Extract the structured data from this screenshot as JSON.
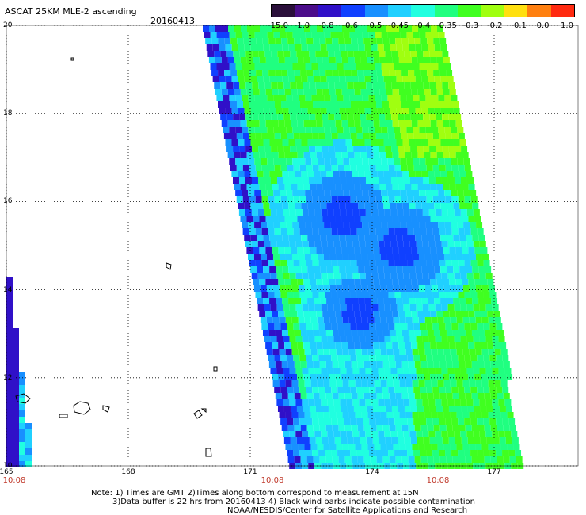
{
  "header": {
    "title": "ASCAT 25KM MLE-2 ascending",
    "date": "20160413"
  },
  "colorbar": {
    "labels": [
      "-15.0",
      "-1.0",
      "-0.8",
      "-0.6",
      "-0.5",
      "-0.45",
      "-0.4",
      "-0.35",
      "-0.3",
      "-0.2",
      "-0.1",
      "0.0",
      "1.0"
    ],
    "colors": [
      "#2a0f3a",
      "#4b0d8a",
      "#3010c8",
      "#1040ff",
      "#1890ff",
      "#20d0ff",
      "#20ffe0",
      "#20ff80",
      "#40ff20",
      "#a0ff10",
      "#ffe010",
      "#ff8010",
      "#ff2a10"
    ]
  },
  "axes": {
    "lat_ticks": [
      "20",
      "18",
      "16",
      "14",
      "12",
      "10"
    ],
    "lon_ticks": [
      "165",
      "168",
      "171",
      "174",
      "177"
    ],
    "time_ticks": [
      "10:08",
      "10:08",
      "10:08"
    ]
  },
  "footer": {
    "line1": "Note: 1) Times are GMT 2)Times along bottom correspond to measurement at 15N",
    "line2": "3)Data buffer is 22 hrs from 20160413 4) Black wind barbs indicate possible contamination",
    "line3": "NOAA/NESDIS/Center for Satellite Applications and Research"
  },
  "map": {
    "lon_range": [
      165,
      178
    ],
    "lat_range": [
      10,
      20
    ],
    "grid": "dotted"
  }
}
